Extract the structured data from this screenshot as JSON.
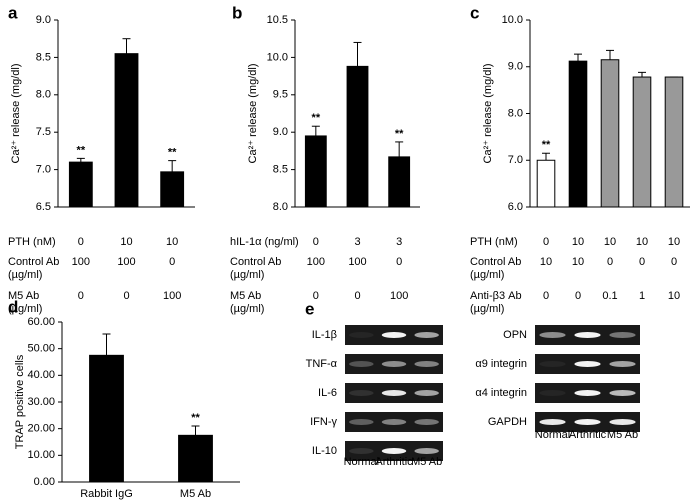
{
  "chart_data": [
    {
      "type": "bar",
      "panel_label": "a",
      "ylabel": "Ca²⁺ release (mg/dl)",
      "ylim": [
        6.5,
        9.0
      ],
      "yticks": [
        6.5,
        {
          "value": 7,
          "label": "7.0"
        },
        7.5,
        {
          "value": 8,
          "label": "8.0"
        },
        8.5,
        {
          "value": 9,
          "label": "9.0"
        }
      ],
      "values": [
        7.1,
        8.55,
        6.97
      ],
      "errors": [
        0.05,
        0.2,
        0.15
      ],
      "color": "#000000",
      "significance": [
        "**",
        null,
        "**"
      ],
      "conditions": [
        {
          "label": [
            "PTH (nM)"
          ],
          "values": [
            0,
            10,
            10
          ]
        },
        {
          "label": [
            "Control Ab",
            "(µg/ml)"
          ],
          "values": [
            100,
            100,
            0
          ]
        },
        {
          "label": [
            "M5 Ab",
            "(µg/ml)"
          ],
          "values": [
            0,
            0,
            100
          ]
        }
      ]
    },
    {
      "type": "bar",
      "panel_label": "b",
      "ylabel": "Ca²⁺ release (mg/dl)",
      "ylim": [
        8.0,
        10.5
      ],
      "yticks": [
        {
          "value": 8,
          "label": "8.0"
        },
        8.5,
        {
          "value": 9,
          "label": "9.0"
        },
        9.5,
        {
          "value": 10,
          "label": "10.0"
        },
        10.5
      ],
      "values": [
        8.95,
        9.88,
        8.67
      ],
      "errors": [
        0.13,
        0.32,
        0.2
      ],
      "color": "#000000",
      "significance": [
        "**",
        null,
        "**"
      ],
      "conditions": [
        {
          "label": [
            "hIL-1α (ng/ml)"
          ],
          "values": [
            0,
            3,
            3
          ]
        },
        {
          "label": [
            "Control Ab",
            "(µg/ml)"
          ],
          "values": [
            100,
            100,
            0
          ]
        },
        {
          "label": [
            "M5 Ab",
            "(µg/ml)"
          ],
          "values": [
            0,
            0,
            100
          ]
        }
      ]
    },
    {
      "type": "bar",
      "panel_label": "c",
      "ylabel": "Ca²⁺ release (mg/dl)",
      "ylim": [
        6.0,
        10.0
      ],
      "yticks": [
        {
          "value": 6,
          "label": "6.0"
        },
        {
          "value": 7,
          "label": "7.0"
        },
        {
          "value": 8,
          "label": "8.0"
        },
        {
          "value": 9,
          "label": "9.0"
        },
        {
          "value": 10,
          "label": "10.0"
        }
      ],
      "values": [
        7.0,
        9.12,
        9.15,
        8.78,
        8.78
      ],
      "errors": [
        0.15,
        0.15,
        0.2,
        0.1,
        0
      ],
      "colors": [
        "#ffffff",
        "#000000",
        "#999999",
        "#999999",
        "#999999"
      ],
      "significance": [
        "**",
        null,
        null,
        null,
        null
      ],
      "conditions": [
        {
          "label": [
            "PTH (nM)"
          ],
          "values": [
            0,
            10,
            10,
            10,
            10
          ]
        },
        {
          "label": [
            "Control Ab",
            "(µg/ml)"
          ],
          "values": [
            10,
            10,
            0,
            0,
            0
          ]
        },
        {
          "label": [
            "Anti-β3 Ab",
            "(µg/ml)"
          ],
          "values": [
            0,
            0,
            0.1,
            1,
            10
          ]
        }
      ]
    },
    {
      "type": "bar",
      "panel_label": "d",
      "ylabel": "TRAP positive cells",
      "ylim": [
        0,
        60
      ],
      "yticks": [
        {
          "value": 0,
          "label": "0.00"
        },
        {
          "value": 10,
          "label": "10.00"
        },
        {
          "value": 20,
          "label": "20.00"
        },
        {
          "value": 30,
          "label": "30.00"
        },
        {
          "value": 40,
          "label": "40.00"
        },
        {
          "value": 50,
          "label": "50.00"
        },
        {
          "value": 60,
          "label": "60.00"
        }
      ],
      "categories": [
        "Rabbit IgG",
        "M5 Ab"
      ],
      "values": [
        47.5,
        17.5
      ],
      "errors": [
        8,
        3.5
      ],
      "color": "#000000",
      "significance": [
        null,
        "**"
      ]
    }
  ],
  "panel_e": {
    "panel_label": "e",
    "left_rows": [
      "IL-1β",
      "TNF-α",
      "IL-6",
      "IFN-γ",
      "IL-10"
    ],
    "right_rows": [
      "OPN",
      "α9 integrin",
      "α4 integrin",
      "GAPDH"
    ],
    "lanes": [
      "Normal",
      "Arthritic",
      "M5 Ab"
    ]
  }
}
